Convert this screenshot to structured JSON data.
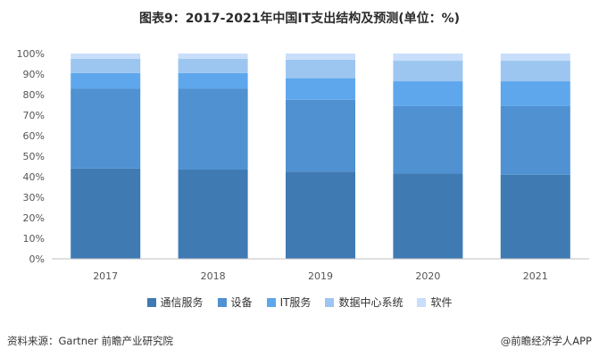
{
  "title": "图表9：2017-2021年中国IT支出结构及预测(单位：%)",
  "source": "资料来源：Gartner 前瞻产业研究院",
  "brand": "@前瞻经济学人APP",
  "colors": {
    "通信服务": "#3f7ab3",
    "设备": "#4f91d1",
    "IT服务": "#5ea7ec",
    "数据中心系统": "#9cc6f0",
    "软件": "#c9defa"
  },
  "chart_data": {
    "type": "bar",
    "stacked": true,
    "categories": [
      "2017",
      "2018",
      "2019",
      "2020",
      "2021"
    ],
    "ylim": [
      0,
      100
    ],
    "yticks": [
      "0%",
      "10%",
      "20%",
      "30%",
      "40%",
      "50%",
      "60%",
      "70%",
      "80%",
      "90%",
      "100%"
    ],
    "legend_position": "bottom",
    "series": [
      {
        "name": "通信服务",
        "values": [
          44,
          43.5,
          42.5,
          41.5,
          41
        ]
      },
      {
        "name": "设备",
        "values": [
          39,
          39.5,
          35,
          33,
          33.5
        ]
      },
      {
        "name": "IT服务",
        "values": [
          7.5,
          7.5,
          10.5,
          12,
          12
        ]
      },
      {
        "name": "数据中心系统",
        "values": [
          7,
          7,
          9,
          10,
          10
        ]
      },
      {
        "name": "软件",
        "values": [
          2.5,
          2.5,
          3,
          3.5,
          3.5
        ]
      }
    ]
  }
}
